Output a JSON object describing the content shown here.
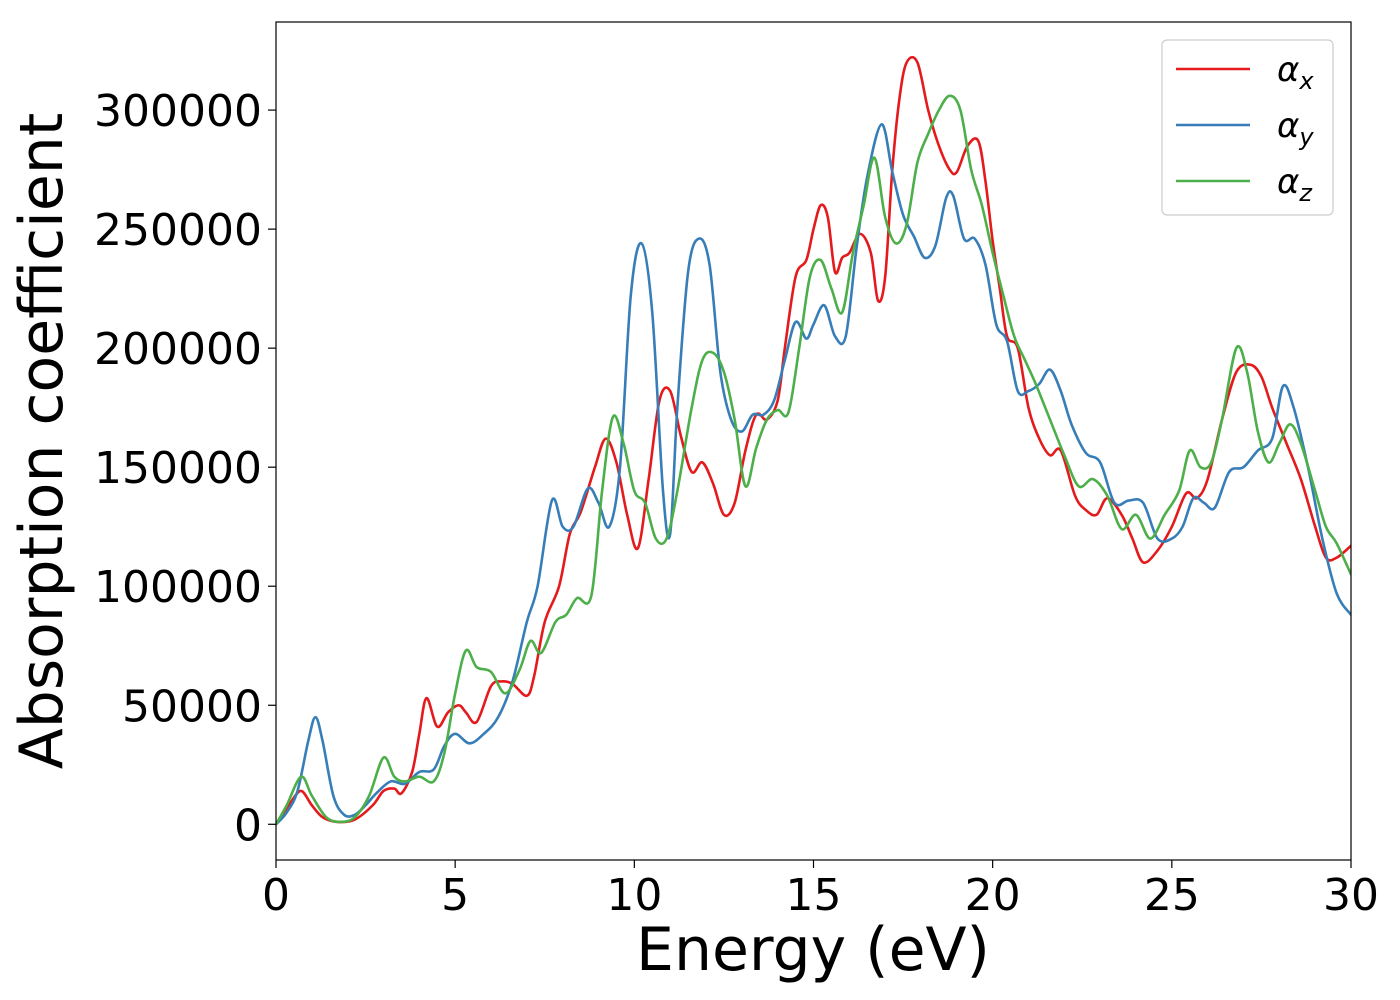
{
  "chart_data": {
    "type": "line",
    "title": "",
    "xlabel": "Energy (eV)",
    "ylabel": "Absorption coefficient",
    "xlim": [
      0,
      30
    ],
    "ylim": [
      -15000,
      337000
    ],
    "xticks": [
      0,
      5,
      10,
      15,
      20,
      25,
      30
    ],
    "yticks": [
      0,
      50000,
      100000,
      150000,
      200000,
      250000,
      300000
    ],
    "xtick_labels": [
      "0",
      "5",
      "10",
      "15",
      "20",
      "25",
      "30"
    ],
    "ytick_labels": [
      "0",
      "50000",
      "100000",
      "150000",
      "200000",
      "250000",
      "300000"
    ],
    "grid": false,
    "legend_position": "top-right",
    "series": [
      {
        "name": "α",
        "subscript": "x",
        "color": "#e41a1c",
        "x": [
          0,
          0.4,
          0.7,
          1.0,
          1.3,
          1.7,
          2.2,
          2.7,
          3.0,
          3.3,
          3.5,
          3.8,
          4.0,
          4.2,
          4.5,
          4.8,
          5.1,
          5.3,
          5.6,
          6.0,
          6.3,
          6.6,
          7.0,
          7.2,
          7.5,
          7.9,
          8.2,
          8.5,
          8.9,
          9.2,
          9.5,
          9.8,
          10.1,
          10.4,
          10.7,
          11.0,
          11.3,
          11.6,
          11.9,
          12.2,
          12.5,
          12.8,
          13.1,
          13.4,
          13.7,
          14.0,
          14.2,
          14.5,
          14.8,
          15.0,
          15.2,
          15.4,
          15.6,
          15.8,
          16.0,
          16.3,
          16.6,
          16.8,
          17.0,
          17.2,
          17.4,
          17.6,
          17.9,
          18.2,
          18.5,
          18.8,
          19.0,
          19.3,
          19.6,
          19.8,
          20.0,
          20.2,
          20.4,
          20.7,
          21.0,
          21.3,
          21.6,
          21.9,
          22.3,
          22.6,
          22.9,
          23.2,
          23.6,
          23.9,
          24.2,
          24.6,
          25.0,
          25.4,
          25.7,
          26.0,
          26.4,
          26.8,
          27.2,
          27.5,
          27.8,
          28.2,
          28.6,
          29.0,
          29.3,
          29.6,
          30.0
        ],
        "y": [
          0,
          9000,
          14000,
          8000,
          3000,
          1000,
          2000,
          8000,
          14000,
          15000,
          13000,
          22000,
          38000,
          53000,
          41000,
          47000,
          50000,
          47000,
          43000,
          58000,
          60000,
          59000,
          54000,
          62000,
          85000,
          100000,
          122000,
          131000,
          150000,
          162000,
          152000,
          130000,
          116000,
          145000,
          178000,
          182000,
          163000,
          148000,
          152000,
          143000,
          130000,
          135000,
          157000,
          172000,
          170000,
          178000,
          200000,
          230000,
          237000,
          250000,
          260000,
          255000,
          232000,
          238000,
          240000,
          248000,
          240000,
          220000,
          230000,
          275000,
          305000,
          320000,
          320000,
          300000,
          285000,
          275000,
          274000,
          285000,
          287000,
          270000,
          245000,
          225000,
          205000,
          200000,
          175000,
          162000,
          155000,
          157000,
          138000,
          132000,
          130000,
          137000,
          130000,
          120000,
          110000,
          115000,
          125000,
          139000,
          137000,
          145000,
          170000,
          190000,
          193000,
          188000,
          175000,
          160000,
          145000,
          125000,
          112000,
          112000,
          117000
        ]
      },
      {
        "name": "α",
        "subscript": "y",
        "color": "#377eb8",
        "x": [
          0,
          0.3,
          0.6,
          0.9,
          1.1,
          1.3,
          1.6,
          1.9,
          2.2,
          2.5,
          2.8,
          3.2,
          3.6,
          4.0,
          4.4,
          4.7,
          5.0,
          5.4,
          5.8,
          6.2,
          6.6,
          7.0,
          7.3,
          7.7,
          8.0,
          8.3,
          8.7,
          9.0,
          9.3,
          9.6,
          9.9,
          10.2,
          10.5,
          10.8,
          11.0,
          11.2,
          11.5,
          11.8,
          12.1,
          12.4,
          12.7,
          13.0,
          13.3,
          13.6,
          13.9,
          14.2,
          14.5,
          14.8,
          15.0,
          15.3,
          15.6,
          15.9,
          16.2,
          16.5,
          16.9,
          17.2,
          17.5,
          17.8,
          18.1,
          18.4,
          18.7,
          18.9,
          19.2,
          19.5,
          19.8,
          20.1,
          20.4,
          20.7,
          21.0,
          21.3,
          21.6,
          21.9,
          22.2,
          22.6,
          23.0,
          23.4,
          23.8,
          24.2,
          24.6,
          25.0,
          25.3,
          25.6,
          25.9,
          26.2,
          26.6,
          27.0,
          27.4,
          27.8,
          28.1,
          28.4,
          28.8,
          29.2,
          29.6,
          30.0
        ],
        "y": [
          0,
          5000,
          14000,
          35000,
          45000,
          35000,
          12000,
          4000,
          4000,
          8000,
          13000,
          18000,
          17000,
          22000,
          23000,
          33000,
          38000,
          34000,
          38000,
          45000,
          60000,
          85000,
          100000,
          136000,
          125000,
          125000,
          141000,
          135000,
          125000,
          150000,
          222000,
          244000,
          215000,
          140000,
          122000,
          175000,
          232000,
          246000,
          235000,
          190000,
          170000,
          165000,
          172000,
          172000,
          178000,
          195000,
          211000,
          204000,
          210000,
          218000,
          205000,
          205000,
          242000,
          272000,
          294000,
          274000,
          256000,
          247000,
          238000,
          243000,
          263000,
          264000,
          246000,
          246000,
          235000,
          210000,
          203000,
          182000,
          182000,
          185000,
          191000,
          182000,
          168000,
          156000,
          152000,
          135000,
          136000,
          135000,
          120000,
          120000,
          125000,
          137000,
          135000,
          133000,
          148000,
          150000,
          157000,
          162000,
          184000,
          175000,
          150000,
          120000,
          97000,
          88000
        ]
      },
      {
        "name": "α",
        "subscript": "z",
        "color": "#4daf4a",
        "x": [
          0,
          0.3,
          0.7,
          1.0,
          1.4,
          1.8,
          2.2,
          2.6,
          3.0,
          3.3,
          3.6,
          4.0,
          4.4,
          4.7,
          5.0,
          5.3,
          5.6,
          6.0,
          6.4,
          6.8,
          7.1,
          7.4,
          7.8,
          8.1,
          8.4,
          8.8,
          9.1,
          9.4,
          9.7,
          10.0,
          10.3,
          10.6,
          10.9,
          11.2,
          11.6,
          11.9,
          12.2,
          12.5,
          12.8,
          13.1,
          13.4,
          13.7,
          14.0,
          14.3,
          14.6,
          14.9,
          15.2,
          15.5,
          15.8,
          16.1,
          16.4,
          16.7,
          17.0,
          17.3,
          17.6,
          17.9,
          18.2,
          18.5,
          18.8,
          19.1,
          19.4,
          19.7,
          20.0,
          20.3,
          20.6,
          20.9,
          21.2,
          21.6,
          22.0,
          22.4,
          22.8,
          23.2,
          23.6,
          24.0,
          24.4,
          24.8,
          25.2,
          25.5,
          25.8,
          26.1,
          26.4,
          26.8,
          27.1,
          27.4,
          27.7,
          28.0,
          28.3,
          28.6,
          29.0,
          29.3,
          29.6,
          30.0
        ],
        "y": [
          0,
          8000,
          20000,
          12000,
          3000,
          1000,
          3000,
          12000,
          28000,
          20000,
          18000,
          20000,
          18000,
          30000,
          55000,
          73000,
          66000,
          64000,
          55000,
          65000,
          77000,
          72000,
          85000,
          88000,
          95000,
          96000,
          140000,
          171000,
          160000,
          140000,
          135000,
          120000,
          120000,
          140000,
          175000,
          195000,
          198000,
          190000,
          170000,
          142000,
          158000,
          170000,
          174000,
          173000,
          200000,
          230000,
          237000,
          225000,
          215000,
          240000,
          260000,
          280000,
          255000,
          244000,
          252000,
          278000,
          290000,
          300000,
          306000,
          300000,
          275000,
          260000,
          240000,
          222000,
          205000,
          195000,
          185000,
          170000,
          155000,
          142000,
          145000,
          138000,
          124000,
          130000,
          120000,
          130000,
          140000,
          157000,
          150000,
          152000,
          170000,
          200000,
          190000,
          165000,
          152000,
          160000,
          168000,
          160000,
          140000,
          125000,
          118000,
          105000
        ]
      }
    ]
  }
}
